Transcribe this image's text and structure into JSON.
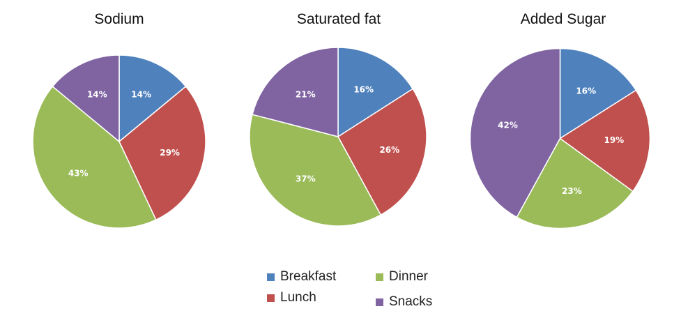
{
  "colors": {
    "breakfast": "#4f81bd",
    "lunch": "#c0504d",
    "dinner": "#9bbb59",
    "snacks": "#8064a2"
  },
  "legend": {
    "items": [
      {
        "label": "Breakfast",
        "color": "#4f81bd"
      },
      {
        "label": "Lunch",
        "color": "#c0504d"
      },
      {
        "label": "Dinner",
        "color": "#9bbb59"
      },
      {
        "label": "Snacks",
        "color": "#8064a2"
      }
    ],
    "placement": "bottom"
  },
  "chart_data": [
    {
      "type": "pie",
      "title": "Sodium",
      "categories": [
        "Breakfast",
        "Lunch",
        "Dinner",
        "Snacks"
      ],
      "values": [
        14,
        29,
        43,
        14
      ],
      "labels": [
        "14%",
        "29%",
        "43%",
        "14%"
      ]
    },
    {
      "type": "pie",
      "title": "Saturated fat",
      "categories": [
        "Breakfast",
        "Lunch",
        "Dinner",
        "Snacks"
      ],
      "values": [
        16,
        26,
        37,
        21
      ],
      "labels": [
        "16%",
        "26%",
        "37%",
        "21%"
      ]
    },
    {
      "type": "pie",
      "title": "Added Sugar",
      "categories": [
        "Breakfast",
        "Lunch",
        "Dinner",
        "Snacks"
      ],
      "values": [
        16,
        19,
        23,
        42
      ],
      "labels": [
        "16%",
        "19%",
        "23%",
        "42%"
      ]
    }
  ]
}
